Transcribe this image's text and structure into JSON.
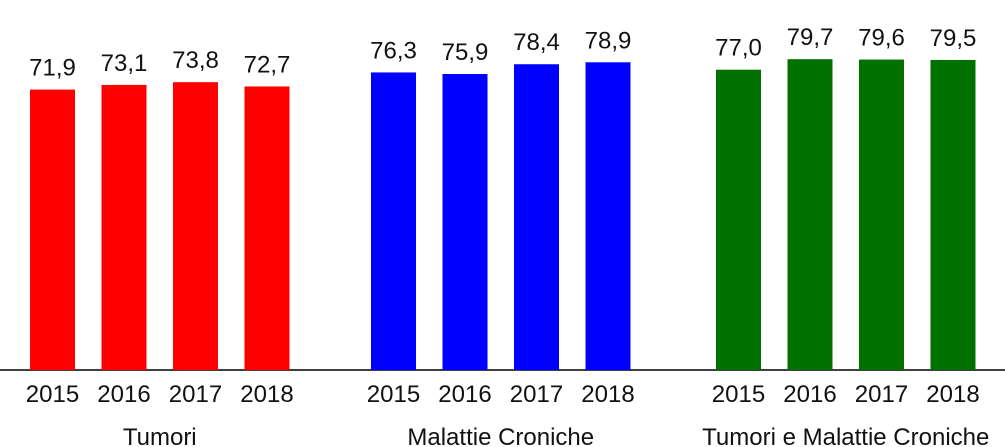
{
  "chart_data": {
    "type": "bar",
    "title": "",
    "xlabel": "",
    "ylabel": "",
    "grid": false,
    "legend": "none",
    "ylim": [
      0,
      80
    ],
    "groups": [
      {
        "name": "Tumori",
        "color": "#ff0000",
        "categories": [
          "2015",
          "2016",
          "2017",
          "2018"
        ],
        "values": [
          71.9,
          73.1,
          73.8,
          72.7
        ],
        "value_labels": [
          "71,9",
          "73,1",
          "73,8",
          "72,7"
        ]
      },
      {
        "name": "Malattie Croniche",
        "color": "#0000ff",
        "categories": [
          "2015",
          "2016",
          "2017",
          "2018"
        ],
        "values": [
          76.3,
          75.9,
          78.4,
          78.9
        ],
        "value_labels": [
          "76,3",
          "75,9",
          "78,4",
          "78,9"
        ]
      },
      {
        "name": "Tumori e Malattie Croniche",
        "color": "#007000",
        "categories": [
          "2015",
          "2016",
          "2017",
          "2018"
        ],
        "values": [
          77.0,
          79.7,
          79.6,
          79.5
        ],
        "value_labels": [
          "77,0",
          "79,7",
          "79,6",
          "79,5"
        ]
      }
    ]
  }
}
